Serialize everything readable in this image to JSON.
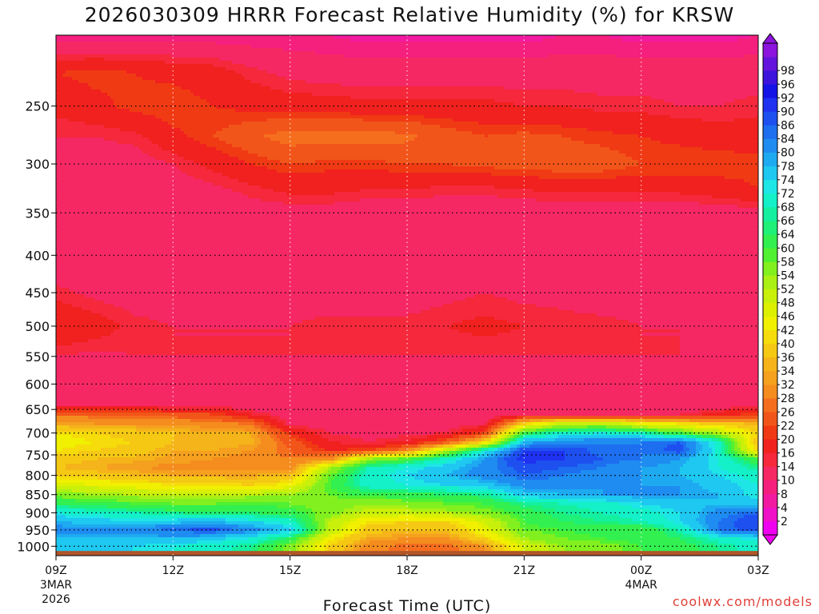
{
  "title": "2026030309 HRRR Forecast Relative Humidity (%) for KRSW",
  "watermark": "coolwx.com/models",
  "chart_data": {
    "type": "heatmap",
    "title": "2026030309 HRRR Forecast Relative Humidity (%) for KRSW",
    "xlabel": "Forecast Time (UTC)",
    "ylabel": "",
    "x_ticks": [
      {
        "hour": 0,
        "label": "09Z",
        "sub1": "3MAR",
        "sub2": "2026"
      },
      {
        "hour": 3,
        "label": "12Z",
        "sub1": "",
        "sub2": ""
      },
      {
        "hour": 6,
        "label": "15Z",
        "sub1": "",
        "sub2": ""
      },
      {
        "hour": 9,
        "label": "18Z",
        "sub1": "",
        "sub2": ""
      },
      {
        "hour": 12,
        "label": "21Z",
        "sub1": "",
        "sub2": ""
      },
      {
        "hour": 15,
        "label": "00Z",
        "sub1": "4MAR",
        "sub2": ""
      },
      {
        "hour": 18,
        "label": "03Z",
        "sub1": "",
        "sub2": ""
      }
    ],
    "y_ticks": [
      250,
      300,
      350,
      400,
      450,
      500,
      550,
      600,
      650,
      700,
      750,
      800,
      850,
      900,
      950,
      1000
    ],
    "xlim": [
      0,
      18
    ],
    "ylim": [
      1030,
      200
    ],
    "y_scale": "log",
    "grid": true,
    "colorbar": {
      "levels": [
        2,
        4,
        8,
        10,
        14,
        16,
        20,
        22,
        26,
        28,
        32,
        34,
        36,
        40,
        42,
        46,
        48,
        52,
        54,
        58,
        60,
        64,
        66,
        68,
        72,
        74,
        78,
        80,
        84,
        86,
        90,
        92,
        96,
        98
      ],
      "colors": [
        "#f000f0",
        "#f010c8",
        "#f21aa0",
        "#f51f7d",
        "#f52864",
        "#f5283c",
        "#f0211e",
        "#f03a14",
        "#f2551a",
        "#f56e1e",
        "#f58c1e",
        "#f5a01e",
        "#f5b419",
        "#f5c814",
        "#f5dc0a",
        "#f0f000",
        "#dcf000",
        "#c8f00a",
        "#aaf014",
        "#82f01e",
        "#50f032",
        "#32f050",
        "#1ef078",
        "#14f0a0",
        "#14f0c8",
        "#1ee6e6",
        "#1ec8f0",
        "#1eaaf0",
        "#1e8cf0",
        "#1e6ef0",
        "#1e50f0",
        "#1e32f0",
        "#1414e6",
        "#3c14dc",
        "#6414dc",
        "#8c14dc"
      ]
    },
    "rh_grid": {
      "hours": [
        0,
        1,
        2,
        3,
        4,
        5,
        6,
        7,
        8,
        9,
        10,
        11,
        12,
        13,
        14,
        15,
        16,
        17,
        18
      ],
      "levels_hPa": [
        200,
        225,
        250,
        275,
        300,
        325,
        350,
        400,
        450,
        500,
        550,
        600,
        640,
        660,
        680,
        700,
        720,
        740,
        760,
        780,
        800,
        825,
        850,
        875,
        900,
        925,
        950,
        975,
        1000,
        1015
      ],
      "values": [
        [
          8,
          8,
          8,
          8,
          8,
          8,
          8,
          8,
          7,
          7,
          7,
          7,
          7,
          8,
          8,
          7,
          7,
          7,
          8
        ],
        [
          20,
          21,
          20,
          19,
          18,
          15,
          13,
          12,
          12,
          12,
          12,
          12,
          12,
          12,
          12,
          12,
          12,
          12,
          12
        ],
        [
          17,
          19,
          21,
          22,
          20,
          19,
          18,
          18,
          17,
          17,
          17,
          17,
          16,
          16,
          15,
          15,
          14,
          14,
          15
        ],
        [
          14,
          14,
          15,
          19,
          22,
          25,
          28,
          28,
          28,
          27,
          24,
          22,
          23,
          22,
          21,
          20,
          19,
          18,
          18
        ],
        [
          12,
          12,
          12,
          14,
          17,
          20,
          22,
          21,
          21,
          22,
          22,
          23,
          24,
          24,
          24,
          22,
          22,
          22,
          21
        ],
        [
          12,
          12,
          12,
          12,
          13,
          15,
          17,
          17,
          16,
          16,
          15,
          15,
          16,
          17,
          17,
          17,
          17,
          18,
          20
        ],
        [
          12,
          12,
          12,
          11,
          11,
          12,
          12,
          12,
          11,
          11,
          11,
          11,
          11,
          11,
          11,
          11,
          11,
          12,
          12
        ],
        [
          10,
          10,
          11,
          11,
          10,
          10,
          10,
          10,
          10,
          10,
          10,
          10,
          10,
          10,
          10,
          10,
          11,
          10,
          10
        ],
        [
          15,
          13,
          12,
          12,
          12,
          12,
          12,
          12,
          12,
          12,
          13,
          14,
          13,
          13,
          12,
          12,
          14,
          12,
          12
        ],
        [
          20,
          18,
          15,
          14,
          14,
          14,
          14,
          15,
          15,
          15,
          16,
          17,
          16,
          15,
          15,
          14,
          14,
          14,
          14
        ],
        [
          14,
          13,
          14,
          14,
          14,
          14,
          14,
          14,
          14,
          14,
          14,
          14,
          14,
          14,
          14,
          14,
          14,
          13,
          13
        ],
        [
          10,
          10,
          10,
          10,
          10,
          10,
          10,
          10,
          10,
          10,
          10,
          10,
          10,
          10,
          10,
          10,
          10,
          10,
          10
        ],
        [
          12,
          12,
          12,
          12,
          12,
          11,
          10,
          10,
          10,
          10,
          10,
          10,
          10,
          10,
          10,
          10,
          10,
          11,
          13
        ],
        [
          26,
          26,
          25,
          24,
          22,
          16,
          12,
          12,
          11,
          11,
          11,
          11,
          14,
          14,
          14,
          14,
          14,
          18,
          22
        ],
        [
          34,
          32,
          32,
          31,
          30,
          27,
          13,
          12,
          12,
          12,
          12,
          14,
          40,
          50,
          52,
          45,
          42,
          38,
          35
        ],
        [
          42,
          40,
          38,
          36,
          35,
          34,
          20,
          14,
          13,
          13,
          14,
          22,
          62,
          70,
          72,
          68,
          60,
          52,
          40
        ],
        [
          44,
          42,
          40,
          36,
          36,
          35,
          24,
          16,
          14,
          16,
          24,
          40,
          78,
          82,
          84,
          84,
          86,
          70,
          36
        ],
        [
          42,
          40,
          38,
          34,
          34,
          32,
          26,
          20,
          22,
          30,
          52,
          72,
          90,
          90,
          84,
          84,
          88,
          70,
          40
        ],
        [
          38,
          36,
          35,
          33,
          32,
          30,
          28,
          30,
          54,
          60,
          70,
          80,
          92,
          90,
          86,
          84,
          80,
          72,
          60
        ],
        [
          36,
          34,
          32,
          31,
          31,
          30,
          30,
          52,
          68,
          72,
          76,
          82,
          88,
          86,
          84,
          80,
          78,
          72,
          66
        ],
        [
          40,
          38,
          36,
          34,
          34,
          34,
          36,
          58,
          70,
          74,
          78,
          82,
          86,
          84,
          82,
          80,
          78,
          74,
          70
        ],
        [
          48,
          46,
          44,
          42,
          42,
          40,
          44,
          60,
          70,
          72,
          74,
          76,
          82,
          82,
          80,
          80,
          80,
          76,
          72
        ],
        [
          56,
          54,
          52,
          50,
          50,
          52,
          54,
          58,
          62,
          62,
          64,
          66,
          76,
          78,
          80,
          80,
          80,
          78,
          72
        ],
        [
          64,
          62,
          60,
          58,
          58,
          60,
          58,
          56,
          54,
          56,
          58,
          60,
          66,
          68,
          70,
          74,
          76,
          78,
          76
        ],
        [
          72,
          70,
          68,
          66,
          64,
          64,
          62,
          56,
          50,
          50,
          52,
          56,
          62,
          66,
          68,
          70,
          74,
          82,
          86
        ],
        [
          78,
          76,
          74,
          76,
          78,
          74,
          70,
          52,
          42,
          40,
          40,
          48,
          60,
          64,
          66,
          68,
          74,
          84,
          90
        ],
        [
          82,
          82,
          82,
          86,
          88,
          82,
          76,
          52,
          38,
          36,
          36,
          46,
          58,
          60,
          62,
          60,
          68,
          84,
          88
        ],
        [
          78,
          78,
          78,
          78,
          76,
          72,
          64,
          44,
          34,
          32,
          32,
          40,
          54,
          58,
          60,
          62,
          64,
          70,
          74
        ],
        [
          74,
          74,
          74,
          72,
          70,
          66,
          56,
          40,
          30,
          26,
          26,
          32,
          48,
          54,
          56,
          60,
          62,
          66,
          70
        ],
        [
          74,
          74,
          74,
          72,
          70,
          66,
          56,
          40,
          30,
          26,
          26,
          32,
          48,
          54,
          56,
          60,
          62,
          66,
          70
        ]
      ]
    },
    "ground_level_hPa": 1015,
    "ground_color": "#b0562a"
  }
}
